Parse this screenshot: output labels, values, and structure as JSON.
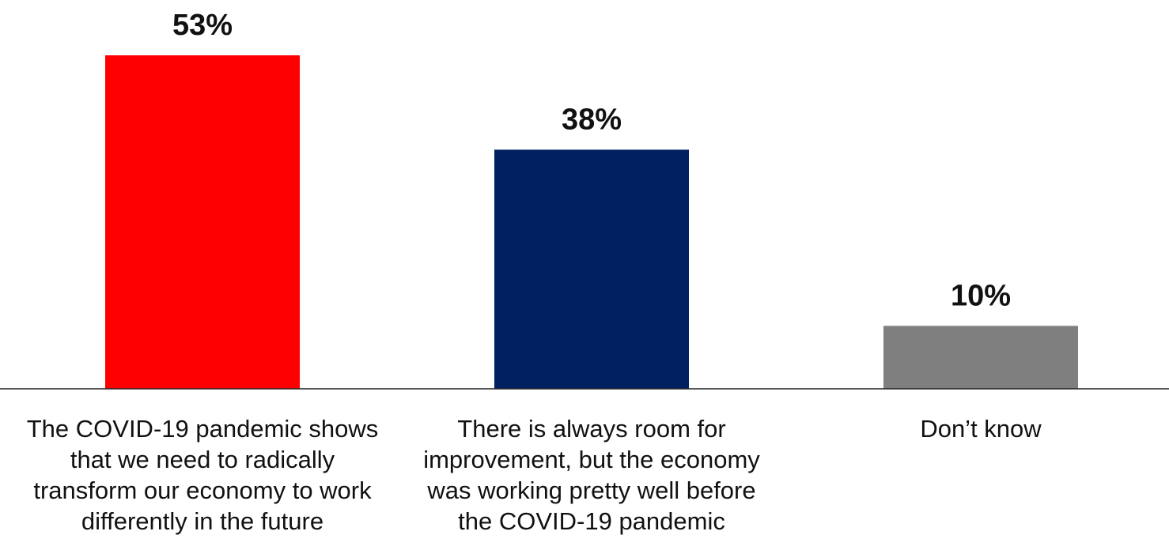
{
  "chart_data": {
    "type": "bar",
    "title": "",
    "xlabel": "",
    "ylabel": "",
    "ylim": [
      0,
      53
    ],
    "grid": false,
    "categories": [
      [
        "The COVID-19 pandemic shows",
        "that we need to radically",
        "transform our economy to work",
        "differently in the future"
      ],
      [
        "There is always room for",
        "improvement, but the economy",
        "was working pretty well before",
        "the COVID-19 pandemic"
      ],
      [
        "Don’t know"
      ]
    ],
    "values": [
      53,
      38,
      10
    ],
    "value_labels": [
      "53%",
      "38%",
      "10%"
    ],
    "colors": [
      "#ff0000",
      "#002060",
      "#7f7f7f"
    ]
  }
}
